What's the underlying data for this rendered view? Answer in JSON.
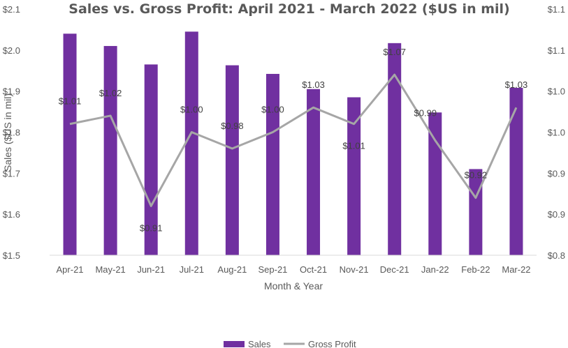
{
  "chart_data": {
    "type": "bar",
    "title": "Sales vs. Gross Profit: April 2021 - March 2022 ($US in mil)",
    "xlabel": "Month & Year",
    "ylabel": "Sales ($US in mil)",
    "categories": [
      "Apr-21",
      "May-21",
      "Jun-21",
      "Jul-21",
      "Aug-21",
      "Sep-21",
      "Oct-21",
      "Nov-21",
      "Dec-21",
      "Jan-22",
      "Feb-22",
      "Mar-22"
    ],
    "ylim": [
      1.5,
      2.1
    ],
    "y_ticks": [
      "$1.5",
      "$1.6",
      "$1.7",
      "$1.8",
      "$1.9",
      "$2.0",
      "$2.1"
    ],
    "y2lim": [
      0.85,
      1.15
    ],
    "y2_ticks": [
      "$0.8",
      "$0.9",
      "$0.9",
      "$1.0",
      "$1.0",
      "$1.1",
      "$1.1"
    ],
    "series": [
      {
        "name": "Sales",
        "type": "bar",
        "axis": "primary",
        "color": "#7030A0",
        "values": [
          2.04,
          2.01,
          1.965,
          2.045,
          1.963,
          1.942,
          1.905,
          1.885,
          2.017,
          1.848,
          1.71,
          1.908
        ]
      },
      {
        "name": "Gross Profit",
        "type": "line",
        "axis": "secondary",
        "color": "#A6A6A6",
        "values": [
          1.01,
          1.02,
          0.91,
          1.0,
          0.98,
          1.0,
          1.03,
          1.01,
          1.07,
          0.99,
          0.92,
          1.03
        ],
        "data_labels": [
          "$1.01",
          "$1.02",
          "$0.91",
          "$1.00",
          "$0.98",
          "$1.00",
          "$1.03",
          "$1.01",
          "$1.07",
          "$0.99",
          "$0.92",
          "$1.03"
        ]
      }
    ],
    "gridlines": false,
    "legend_position": "bottom"
  }
}
